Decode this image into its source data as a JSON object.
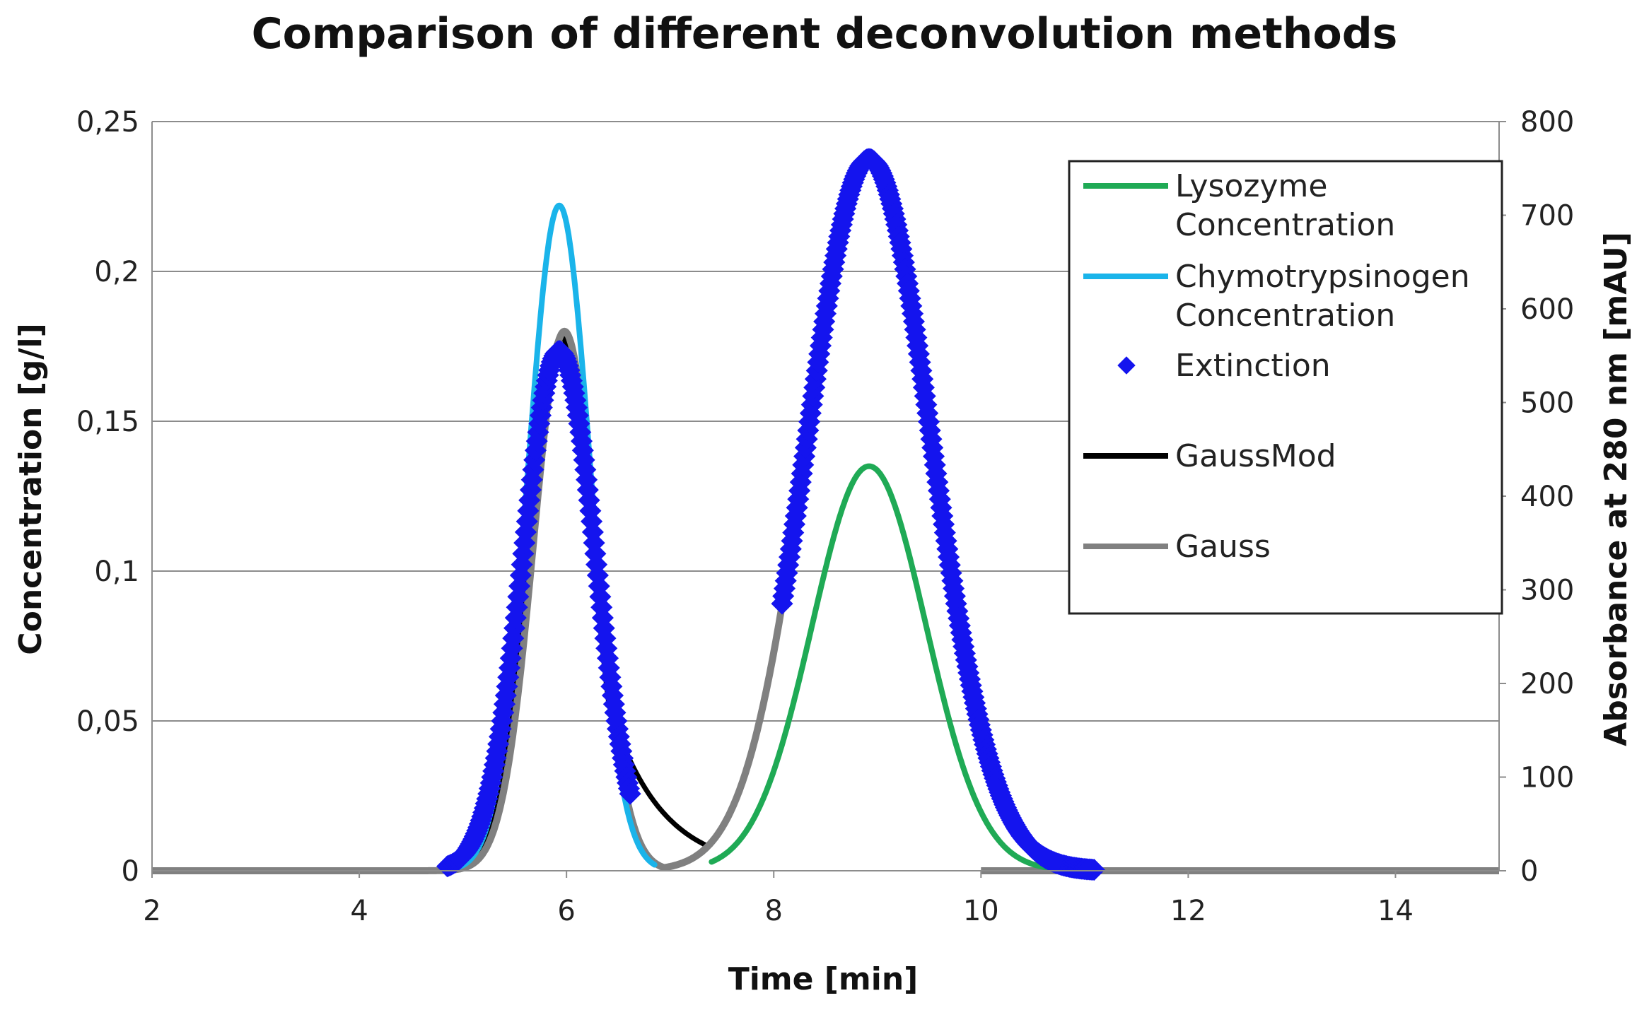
{
  "chart_data": {
    "type": "line",
    "title": "Comparison of different deconvolution methods",
    "xlabel": "Time [min]",
    "ylabel_left": "Concentration [g/l]",
    "ylabel_right": "Absorbance at 280 nm [mAU]",
    "xlim": [
      2,
      15
    ],
    "ylim_left": [
      0,
      0.25
    ],
    "ylim_right": [
      0,
      800
    ],
    "x_ticks": [
      "2",
      "4",
      "6",
      "8",
      "10",
      "12",
      "14"
    ],
    "y_left_ticks": [
      "0",
      "0,05",
      "0,1",
      "0,15",
      "0,2",
      "0,25"
    ],
    "y_right_ticks": [
      "0",
      "100",
      "200",
      "300",
      "400",
      "500",
      "600",
      "700",
      "800"
    ],
    "grid": true,
    "legend_position": "top-right",
    "series": [
      {
        "name": "Lysozyme Concentration",
        "legend_lines": [
          "Lysozyme",
          "Concentration"
        ],
        "axis": "left",
        "style": "line",
        "color": "#1faa55",
        "peak": {
          "x": 8.92,
          "y": 0.135,
          "sigma": 0.55
        },
        "x_range": [
          7.4,
          11.1
        ]
      },
      {
        "name": "Chymotrypsinogen Concentration",
        "legend_lines": [
          "Chymotrypsinogen",
          "Concentration"
        ],
        "axis": "left",
        "style": "line",
        "color": "#1ab4ea",
        "peak": {
          "x": 5.93,
          "y": 0.222,
          "sigma": 0.3
        },
        "x_range": [
          4.9,
          6.85
        ]
      },
      {
        "name": "Extinction",
        "legend_lines": [
          "Extinction"
        ],
        "axis": "right",
        "style": "points",
        "color": "#1414ee",
        "segments": [
          {
            "peak": {
              "x": 5.93,
              "y": 555,
              "sigma": 0.35
            },
            "x_range": [
              4.85,
              6.62
            ]
          },
          {
            "peak": {
              "x": 8.92,
              "y": 760,
              "sigma": 0.6
            },
            "x_range": [
              8.08,
              11.1
            ]
          }
        ]
      },
      {
        "name": "GaussMod",
        "legend_lines": [
          "GaussMod"
        ],
        "axis": "left",
        "style": "line",
        "color": "#000000",
        "peaks": [
          {
            "x": 5.95,
            "y": 0.178,
            "sigma": 0.3,
            "tail": 0.5
          },
          {
            "x": 8.92,
            "y": 0.235,
            "sigma": 0.6,
            "tail": 0.0
          }
        ],
        "x_range": [
          4.9,
          8.3
        ]
      },
      {
        "name": "Gauss",
        "legend_lines": [
          "Gauss"
        ],
        "axis": "left",
        "style": "line",
        "color": "#808080",
        "peaks": [
          {
            "x": 5.98,
            "y": 0.18,
            "sigma": 0.3
          },
          {
            "x": 8.92,
            "y": 0.236,
            "sigma": 0.6
          }
        ],
        "x_range": [
          2,
          10
        ]
      }
    ]
  }
}
